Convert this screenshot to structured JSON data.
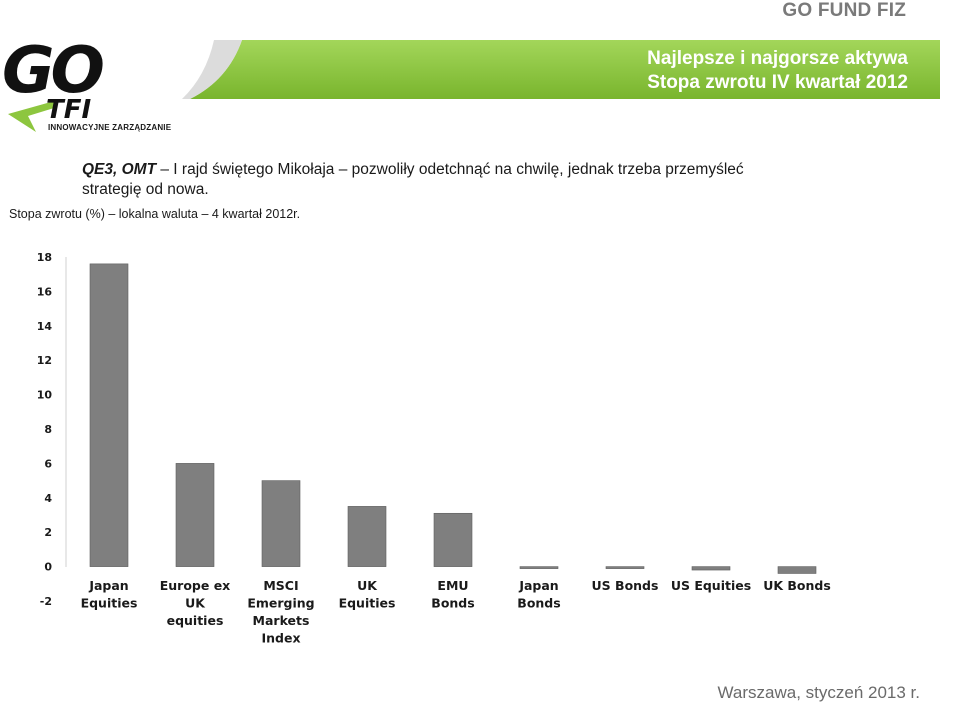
{
  "brand": "GO FUND FIZ",
  "banner": {
    "line1": "Najlepsze i najgorsze aktywa",
    "line2": "Stopa zwrotu IV kwartał 2012",
    "color": "#8dc63f"
  },
  "logo": {
    "main": "GO",
    "tfi": "TFI",
    "tagline": "INNOWACYJNE ZARZĄDZANIE"
  },
  "headline": {
    "bold": "QE3, OMT",
    "text": " – I rajd świętego Mikołaja – pozwoliły odetchnąć na chwilę, jednak trzeba przemyśleć strategię od nowa."
  },
  "chart_caption": "Stopa zwrotu (%) – lokalna waluta – 4 kwartał 2012r.",
  "chart_data": {
    "type": "bar",
    "categories": [
      [
        "Japan",
        "Equities"
      ],
      [
        "Europe ex",
        "UK",
        "equities"
      ],
      [
        "MSCI",
        "Emerging",
        "Markets",
        "Index"
      ],
      [
        "UK",
        "Equities"
      ],
      [
        "EMU",
        "Bonds"
      ],
      [
        "Japan",
        "Bonds"
      ],
      [
        "US Bonds"
      ],
      [
        "US Equities"
      ],
      [
        "UK Bonds"
      ]
    ],
    "values": [
      17.6,
      6.0,
      5.0,
      3.5,
      3.1,
      -0.1,
      -0.1,
      -0.2,
      -0.4
    ],
    "ylim": [
      -2,
      18
    ],
    "yticks": [
      "-2",
      "0",
      "2",
      "4",
      "6",
      "8",
      "10",
      "12",
      "14",
      "16",
      "18"
    ],
    "bar_color": "#7f7f7f",
    "grid": false
  },
  "footer": "Warszawa, styczeń 2013 r."
}
